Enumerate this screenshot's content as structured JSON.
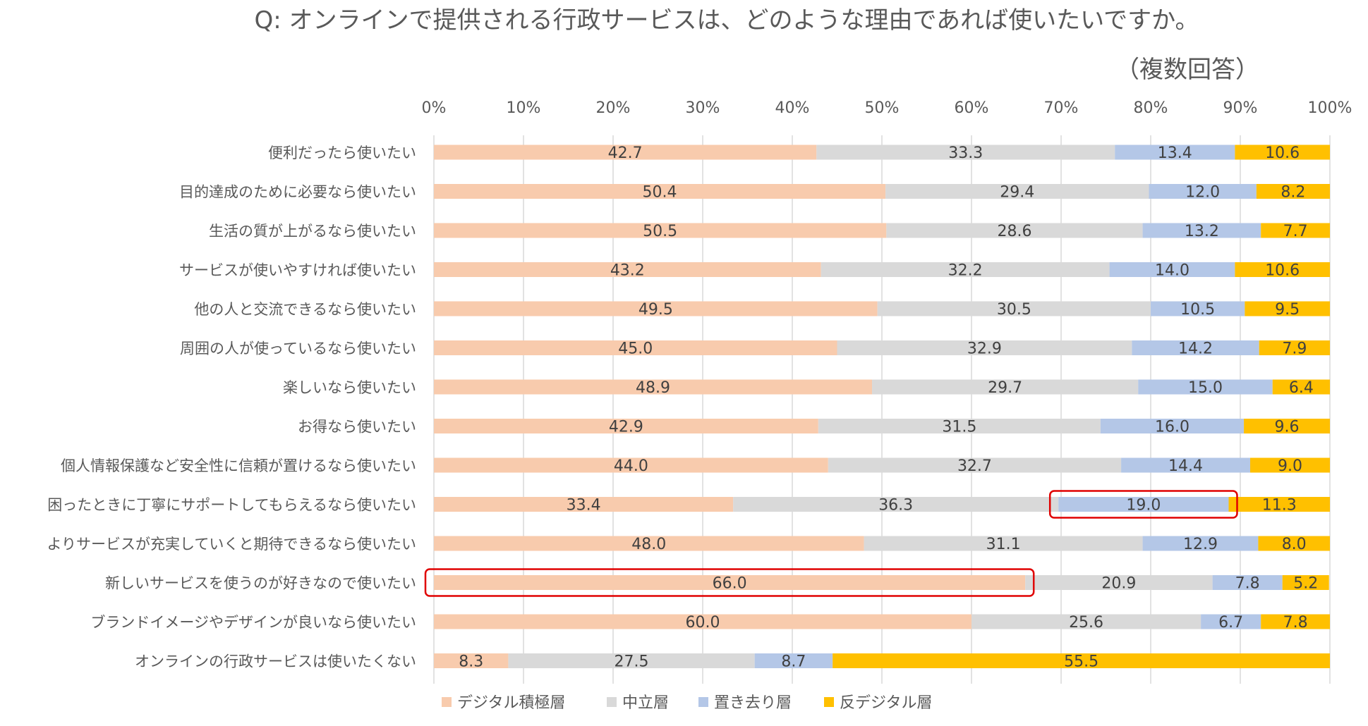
{
  "chart_data": {
    "type": "bar",
    "orientation": "horizontal",
    "stacked": "percent",
    "title": "Q: オンラインで提供される行政サービスは、どのような理由であれば使いたいですか。",
    "subtitle": "（複数回答）",
    "xlim": [
      0,
      100
    ],
    "x_ticks": [
      "0%",
      "10%",
      "20%",
      "30%",
      "40%",
      "50%",
      "60%",
      "70%",
      "80%",
      "90%",
      "100%"
    ],
    "grid": true,
    "legend_position": "bottom",
    "categories": [
      "便利だったら使いたい",
      "目的達成のために必要なら使いたい",
      "生活の質が上がるなら使いたい",
      "サービスが使いやすければ使いたい",
      "他の人と交流できるなら使いたい",
      "周囲の人が使っているなら使いたい",
      "楽しいなら使いたい",
      "お得なら使いたい",
      "個人情報保護など安全性に信頼が置けるなら使いたい",
      "困ったときに丁寧にサポートしてもらえるなら使いたい",
      "よりサービスが充実していくと期待できるなら使いたい",
      "新しいサービスを使うのが好きなので使いたい",
      "ブランドイメージやデザインが良いなら使いたい",
      "オンラインの行政サービスは使いたくない"
    ],
    "series": [
      {
        "name": "デジタル積極層",
        "color": "#f8cbad",
        "values": [
          42.7,
          50.4,
          50.5,
          43.2,
          49.5,
          45.0,
          48.9,
          42.9,
          44.0,
          33.4,
          48.0,
          66.0,
          60.0,
          8.3
        ],
        "labels": [
          "42.7",
          "50.4",
          "50.5",
          "43.2",
          "49.5",
          "45.0",
          "48.9",
          "42.9",
          "44.0",
          "33.4",
          "48.0",
          "66.0",
          "60.0",
          "8.3"
        ]
      },
      {
        "name": "中立層",
        "color": "#d9d9d9",
        "values": [
          33.3,
          29.4,
          28.6,
          32.2,
          30.5,
          32.9,
          29.7,
          31.5,
          32.7,
          36.3,
          31.1,
          20.9,
          25.6,
          27.5
        ],
        "labels": [
          "33.3",
          "29.4",
          "28.6",
          "32.2",
          "30.5",
          "32.9",
          "29.7",
          "31.5",
          "32.7",
          "36.3",
          "31.1",
          "20.9",
          "25.6",
          "27.5"
        ]
      },
      {
        "name": "置き去り層",
        "color": "#b4c7e7",
        "values": [
          13.4,
          12.0,
          13.2,
          14.0,
          10.5,
          14.2,
          15.0,
          16.0,
          14.4,
          19.0,
          12.9,
          7.8,
          6.7,
          8.7
        ],
        "labels": [
          "13.4",
          "12.0",
          "13.2",
          "14.0",
          "10.5",
          "14.2",
          "15.0",
          "16.0",
          "14.4",
          "19.0",
          "12.9",
          "7.8",
          "6.7",
          "8.7"
        ]
      },
      {
        "name": "反デジタル層",
        "color": "#ffc000",
        "values": [
          10.6,
          8.2,
          7.7,
          10.6,
          9.5,
          7.9,
          6.4,
          9.6,
          9.0,
          11.3,
          8.0,
          5.2,
          7.8,
          55.5
        ],
        "labels": [
          "10.6",
          "8.2",
          "7.7",
          "10.6",
          "9.5",
          "7.9",
          "6.4",
          "9.6",
          "9.0",
          "11.3",
          "8.0",
          "5.2",
          "7.8",
          "55.5"
        ]
      }
    ],
    "highlights": [
      {
        "category_index": 9,
        "series_index": 2
      },
      {
        "category_index": 11,
        "series_index": 0
      }
    ],
    "highlight_color": "#e00000"
  }
}
